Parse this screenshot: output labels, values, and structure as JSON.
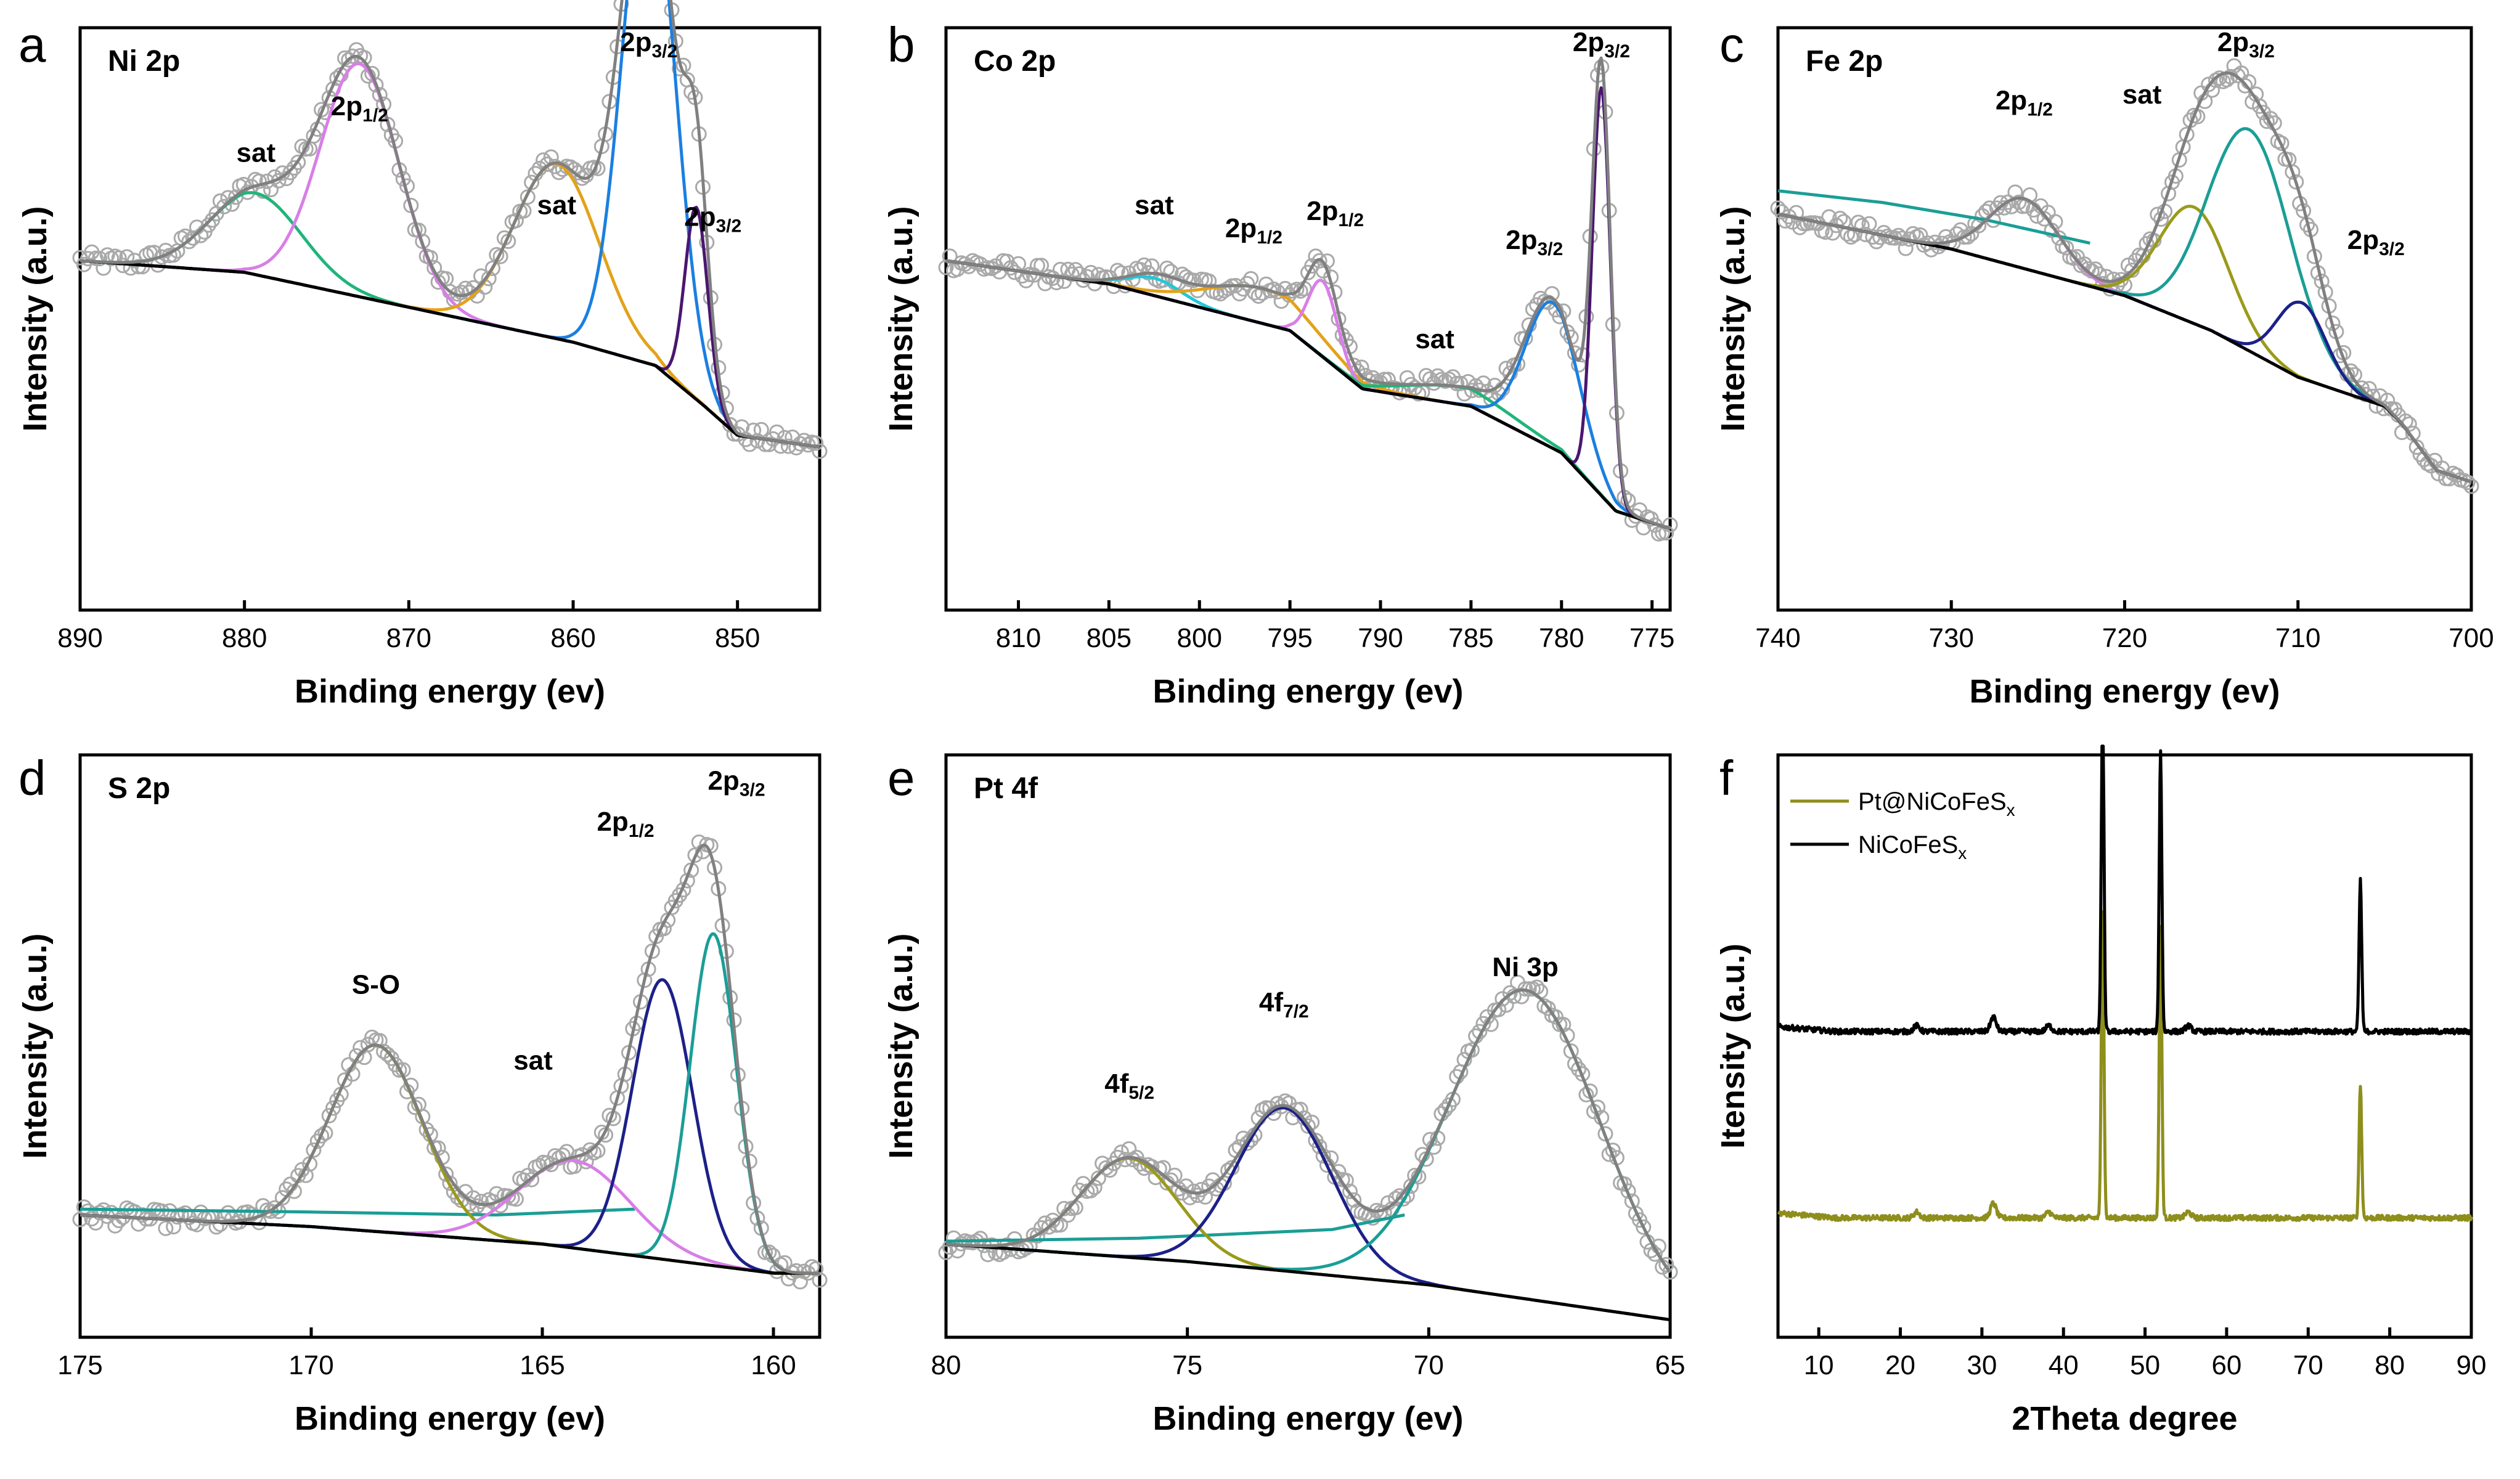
{
  "colors": {
    "envelope": "#808080",
    "background": "#000000",
    "points": "#a9a9a9",
    "green": "#1fb57a",
    "violet": "#d87ee8",
    "orange": "#e3a21a",
    "blue": "#1b7fe0",
    "purple": "#4a1670",
    "cyan": "#22c8d8",
    "olive": "#9a9a1a",
    "teal": "#1a9e96",
    "navy": "#1c2088",
    "xrd_pt": "#8e8e1c",
    "xrd_nicofes": "#000000"
  },
  "chart_data": [
    {
      "id": "a",
      "letter": "a",
      "type": "line",
      "title": "Ni 2p",
      "xlabel": "Binding energy (ev)",
      "ylabel": "Intensity (a.u.)",
      "xlim": [
        890,
        845
      ],
      "ylim": [
        0,
        100
      ],
      "xticks": [
        890,
        880,
        870,
        860,
        850
      ],
      "bg": [
        [
          890,
          60
        ],
        [
          880,
          58
        ],
        [
          870,
          52
        ],
        [
          860,
          46
        ],
        [
          855,
          42
        ],
        [
          852,
          35
        ],
        [
          850,
          30
        ],
        [
          845,
          28
        ]
      ],
      "peaks": [
        {
          "center": 879.3,
          "height": 14,
          "width": 2.8,
          "color": "green"
        },
        {
          "center": 873.0,
          "height": 40,
          "width": 2.4,
          "color": "violet"
        },
        {
          "center": 861.0,
          "height": 30,
          "width": 2.6,
          "color": "orange"
        },
        {
          "center": 855.4,
          "height": 87,
          "width": 1.6,
          "color": "blue"
        },
        {
          "center": 852.5,
          "height": 33,
          "width": 0.7,
          "color": "purple"
        }
      ],
      "labels": [
        {
          "x": 879.3,
          "y": 77,
          "base": "sat",
          "sub": ""
        },
        {
          "x": 873.0,
          "y": 85,
          "base": "2p",
          "sub": "1/2"
        },
        {
          "x": 861.0,
          "y": 68,
          "base": "sat",
          "sub": ""
        },
        {
          "x": 855.4,
          "y": 96,
          "base": "2p",
          "sub": "3/2"
        },
        {
          "x": 851.5,
          "y": 66,
          "base": "2p",
          "sub": "3/2"
        }
      ]
    },
    {
      "id": "b",
      "letter": "b",
      "type": "line",
      "title": "Co 2p",
      "xlabel": "Binding energy (ev)",
      "ylabel": "Intensity (a.u.)",
      "xlim": [
        814,
        774
      ],
      "ylim": [
        0,
        100
      ],
      "xticks": [
        810,
        805,
        800,
        795,
        790,
        785,
        780,
        775
      ],
      "bg": [
        [
          814,
          60
        ],
        [
          805,
          56
        ],
        [
          795,
          48
        ],
        [
          791,
          38
        ],
        [
          785,
          35
        ],
        [
          780,
          27
        ],
        [
          777,
          17
        ],
        [
          774,
          14
        ]
      ],
      "peaks": [
        {
          "center": 802.5,
          "height": 3,
          "width": 1.5,
          "color": "cyan"
        },
        {
          "center": 796.5,
          "height": 6,
          "width": 3.0,
          "color": "orange"
        },
        {
          "center": 793.2,
          "height": 13,
          "width": 0.8,
          "color": "violet"
        },
        {
          "center": 785.5,
          "height": 3,
          "width": 3.0,
          "color": "green"
        },
        {
          "center": 780.5,
          "height": 25,
          "width": 1.5,
          "color": "blue"
        },
        {
          "center": 777.8,
          "height": 70,
          "width": 0.5,
          "color": "purple"
        }
      ],
      "labels": [
        {
          "x": 802.5,
          "y": 68,
          "base": "sat",
          "sub": ""
        },
        {
          "x": 797.0,
          "y": 64,
          "base": "2p",
          "sub": "1/2"
        },
        {
          "x": 792.5,
          "y": 67,
          "base": "2p",
          "sub": "1/2"
        },
        {
          "x": 787.0,
          "y": 45,
          "base": "sat",
          "sub": ""
        },
        {
          "x": 781.5,
          "y": 62,
          "base": "2p",
          "sub": "3/2"
        },
        {
          "x": 777.8,
          "y": 96,
          "base": "2p",
          "sub": "3/2"
        }
      ]
    },
    {
      "id": "c",
      "letter": "c",
      "type": "line",
      "title": "Fe 2p",
      "xlabel": "Binding energy (ev)",
      "ylabel": "Intensity (a.u.)",
      "xlim": [
        740,
        700
      ],
      "ylim": [
        0,
        100
      ],
      "xticks": [
        740,
        730,
        720,
        710,
        700
      ],
      "bg": [
        [
          740,
          68
        ],
        [
          730,
          62
        ],
        [
          720,
          54
        ],
        [
          715,
          48
        ],
        [
          710,
          40
        ],
        [
          705,
          35
        ],
        [
          704,
          32
        ],
        [
          702,
          24
        ],
        [
          700,
          22
        ]
      ],
      "peaks": [
        {
          "center": 725.8,
          "height": 12,
          "width": 2.0,
          "color": "violet"
        },
        {
          "center": 716.0,
          "height": 20,
          "width": 2.0,
          "color": "olive"
        },
        {
          "center": 712.8,
          "height": 38,
          "width": 2.4,
          "color": "teal"
        },
        {
          "center": 709.8,
          "height": 13,
          "width": 1.4,
          "color": "navy"
        }
      ],
      "extra_lines": [
        {
          "color": "teal",
          "points": [
            [
              740,
              72
            ],
            [
              734,
              70
            ],
            [
              728,
              67
            ],
            [
              722,
              63
            ]
          ]
        }
      ],
      "labels": [
        {
          "x": 725.8,
          "y": 86,
          "base": "2p",
          "sub": "1/2"
        },
        {
          "x": 719.0,
          "y": 87,
          "base": "sat",
          "sub": ""
        },
        {
          "x": 713.0,
          "y": 96,
          "base": "2p",
          "sub": "3/2"
        },
        {
          "x": 705.5,
          "y": 62,
          "base": "2p",
          "sub": "3/2"
        }
      ]
    },
    {
      "id": "d",
      "letter": "d",
      "type": "line",
      "title": "S 2p",
      "xlabel": "Binding energy (ev)",
      "ylabel": "Intensity (a.u.)",
      "xlim": [
        175,
        159
      ],
      "ylim": [
        0,
        100
      ],
      "xticks": [
        175,
        170,
        165,
        160
      ],
      "bg": [
        [
          175,
          21
        ],
        [
          170,
          19
        ],
        [
          165,
          16
        ],
        [
          162,
          13
        ],
        [
          160,
          11
        ],
        [
          159,
          11
        ]
      ],
      "peaks": [
        {
          "center": 168.6,
          "height": 32,
          "width": 1.0,
          "color": "olive"
        },
        {
          "center": 164.3,
          "height": 15,
          "width": 1.2,
          "color": "violet"
        },
        {
          "center": 162.4,
          "height": 48,
          "width": 0.65,
          "color": "navy"
        },
        {
          "center": 161.3,
          "height": 57,
          "width": 0.5,
          "color": "teal"
        }
      ],
      "extra_lines": [
        {
          "color": "teal",
          "points": [
            [
              175,
              22
            ],
            [
              170,
              21.5
            ],
            [
              166,
              21
            ],
            [
              163,
              22
            ]
          ]
        }
      ],
      "labels": [
        {
          "x": 168.6,
          "y": 59,
          "base": "S-O",
          "sub": ""
        },
        {
          "x": 165.2,
          "y": 46,
          "base": "sat",
          "sub": ""
        },
        {
          "x": 163.2,
          "y": 87,
          "base": "2p",
          "sub": "1/2"
        },
        {
          "x": 160.8,
          "y": 94,
          "base": "2p",
          "sub": "3/2"
        }
      ]
    },
    {
      "id": "e",
      "letter": "e",
      "type": "line",
      "title": "Pt 4f",
      "xlabel": "Binding energy (ev)",
      "ylabel": "Intensity (a.u.)",
      "xlim": [
        80,
        65
      ],
      "ylim": [
        0,
        100
      ],
      "xticks": [
        80,
        75,
        70,
        65
      ],
      "bg": [
        [
          80,
          16
        ],
        [
          75,
          13
        ],
        [
          70,
          9
        ],
        [
          65,
          3
        ]
      ],
      "peaks": [
        {
          "center": 76.2,
          "height": 17,
          "width": 1.0,
          "color": "olive"
        },
        {
          "center": 73.0,
          "height": 28,
          "width": 1.0,
          "color": "navy"
        },
        {
          "center": 68.0,
          "height": 53,
          "width": 1.55,
          "color": "teal"
        }
      ],
      "extra_lines": [
        {
          "color": "teal",
          "points": [
            [
              80,
              16.5
            ],
            [
              76,
              17
            ],
            [
              72,
              18.5
            ],
            [
              70.5,
              21
            ]
          ]
        }
      ],
      "labels": [
        {
          "x": 76.2,
          "y": 42,
          "base": "4f",
          "sub": "5/2"
        },
        {
          "x": 73.0,
          "y": 56,
          "base": "4f",
          "sub": "7/2"
        },
        {
          "x": 68.0,
          "y": 62,
          "base": "Ni 3p",
          "sub": ""
        }
      ]
    },
    {
      "id": "f",
      "letter": "f",
      "type": "line",
      "title": "",
      "xlabel": "2Theta degree",
      "ylabel": "Itensity (a.u.)",
      "xlim": [
        5,
        90
      ],
      "ylim": [
        0,
        100
      ],
      "xticks": [
        10,
        20,
        30,
        40,
        50,
        60,
        70,
        80,
        90
      ],
      "series": [
        {
          "name": "Pt@NiCoFeSx",
          "legend_base": "Pt@NiCoFeS",
          "legend_sub": "x",
          "color": "xrd_pt",
          "baseline": 20.5,
          "peaks": [
            [
              22.0,
              1.0
            ],
            [
              31.4,
              2.5
            ],
            [
              38.2,
              1.0
            ],
            [
              44.8,
              53
            ],
            [
              51.9,
              50
            ],
            [
              55.3,
              1.0
            ],
            [
              76.4,
              23
            ]
          ]
        },
        {
          "name": "NiCoFeSx",
          "legend_base": "NiCoFeS",
          "legend_sub": "x",
          "color": "xrd_nicofes",
          "baseline": 52.5,
          "peaks": [
            [
              22.0,
              1.0
            ],
            [
              31.4,
              2.5
            ],
            [
              38.2,
              1.0
            ],
            [
              44.8,
              58
            ],
            [
              51.9,
              48
            ],
            [
              55.3,
              1.0
            ],
            [
              76.4,
              26
            ]
          ]
        }
      ],
      "legend": [
        "Pt@NiCoFeSx",
        "NiCoFeSx"
      ]
    }
  ]
}
